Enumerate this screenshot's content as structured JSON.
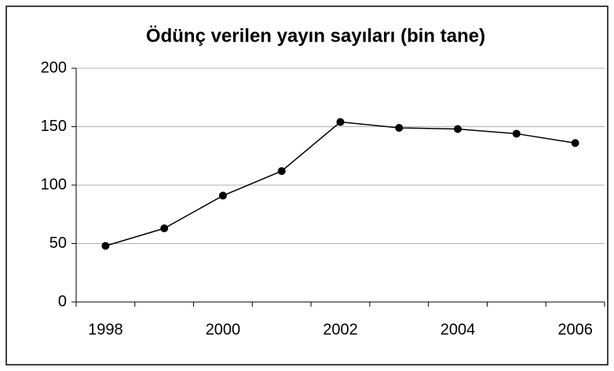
{
  "chart_data": {
    "type": "line",
    "title": "Ödünç verilen yayın sayıları (bin tane)",
    "categories": [
      "1998",
      null,
      "2000",
      null,
      "2002",
      null,
      "2004",
      null,
      "2006"
    ],
    "series": [
      {
        "name": null,
        "color": "#000000",
        "values": [
          48,
          63,
          91,
          112,
          154,
          149,
          148,
          144,
          136
        ]
      }
    ],
    "ylim": [
      0,
      200
    ],
    "yticks": [
      0,
      50,
      100,
      150,
      200
    ],
    "grid": true
  }
}
